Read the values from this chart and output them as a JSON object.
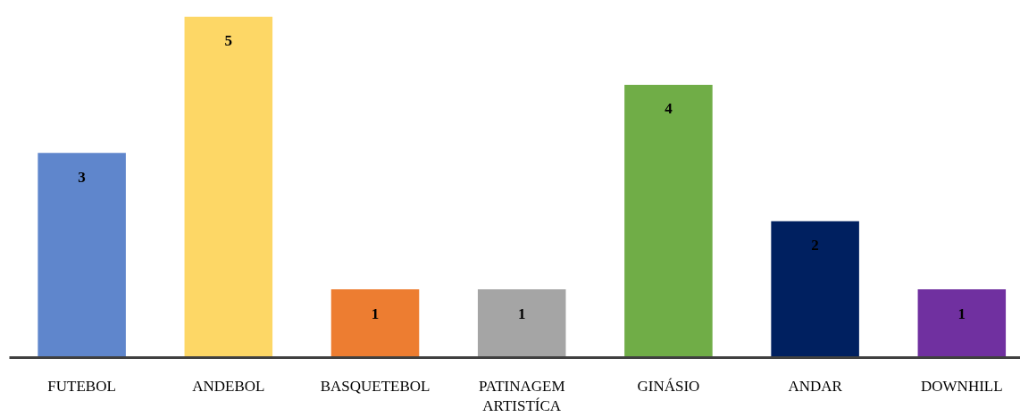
{
  "chart_data": {
    "type": "bar",
    "categories": [
      "FUTEBOL",
      "ANDEBOL",
      "BASQUETEBOL",
      "PATINAGEM ARTISTÍCA",
      "GINÁSIO",
      "ANDAR",
      "DOWNHILL"
    ],
    "values": [
      3,
      5,
      1,
      1,
      4,
      2,
      1
    ],
    "colors": [
      "#5f86cc",
      "#fdd766",
      "#ed7d31",
      "#a5a5a5",
      "#70ad47",
      "#002060",
      "#7030a0"
    ],
    "data_labels": true,
    "grid": false
  }
}
